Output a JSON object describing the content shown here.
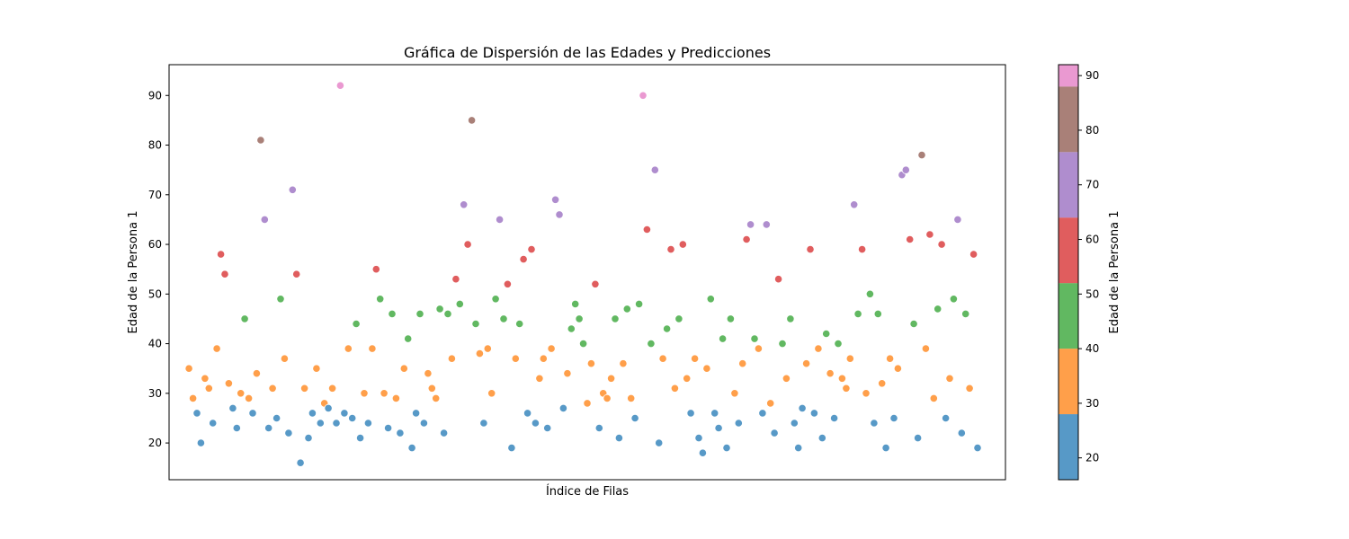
{
  "chart_data": {
    "type": "scatter",
    "title": "Gráfica de Dispersión de las Edades y Predicciones",
    "xlabel": "Índice de Filas",
    "ylabel": "Edad de la Persona 1",
    "xlim": [
      -5,
      205
    ],
    "ylim": [
      12.6,
      96.2
    ],
    "x_ticks_visible": false,
    "yticks": [
      20,
      30,
      40,
      50,
      60,
      70,
      80,
      90
    ],
    "grid": false,
    "marker": "circle",
    "marker_alpha": 0.75,
    "marker_edgecolor": "#ffffff",
    "colorbar": {
      "label": "Edad de la Persona 1",
      "range": [
        16,
        92
      ],
      "ticks": [
        20,
        30,
        40,
        50,
        60,
        70,
        80,
        90
      ],
      "bands": [
        {
          "from": 16,
          "to": 28,
          "color": "#1f77b4"
        },
        {
          "from": 28,
          "to": 40,
          "color": "#ff7f0e"
        },
        {
          "from": 40,
          "to": 52,
          "color": "#2ca02c"
        },
        {
          "from": 52,
          "to": 64,
          "color": "#d62728"
        },
        {
          "from": 64,
          "to": 76,
          "color": "#9467bd"
        },
        {
          "from": 76,
          "to": 88,
          "color": "#8c564b"
        },
        {
          "from": 88,
          "to": 92,
          "color": "#e377c2"
        }
      ]
    },
    "points": [
      [
        0,
        35
      ],
      [
        1,
        29
      ],
      [
        2,
        26
      ],
      [
        3,
        20
      ],
      [
        4,
        33
      ],
      [
        5,
        31
      ],
      [
        6,
        24
      ],
      [
        7,
        39
      ],
      [
        8,
        58
      ],
      [
        9,
        54
      ],
      [
        10,
        32
      ],
      [
        11,
        27
      ],
      [
        12,
        23
      ],
      [
        13,
        30
      ],
      [
        14,
        45
      ],
      [
        15,
        29
      ],
      [
        16,
        26
      ],
      [
        17,
        34
      ],
      [
        18,
        81
      ],
      [
        19,
        65
      ],
      [
        20,
        23
      ],
      [
        21,
        31
      ],
      [
        22,
        25
      ],
      [
        23,
        49
      ],
      [
        24,
        37
      ],
      [
        25,
        22
      ],
      [
        26,
        71
      ],
      [
        27,
        54
      ],
      [
        28,
        16
      ],
      [
        29,
        31
      ],
      [
        30,
        21
      ],
      [
        31,
        26
      ],
      [
        32,
        35
      ],
      [
        33,
        24
      ],
      [
        34,
        28
      ],
      [
        35,
        27
      ],
      [
        36,
        31
      ],
      [
        37,
        24
      ],
      [
        38,
        92
      ],
      [
        39,
        26
      ],
      [
        40,
        39
      ],
      [
        41,
        25
      ],
      [
        42,
        44
      ],
      [
        43,
        21
      ],
      [
        44,
        30
      ],
      [
        45,
        24
      ],
      [
        46,
        39
      ],
      [
        47,
        55
      ],
      [
        48,
        49
      ],
      [
        49,
        30
      ],
      [
        50,
        23
      ],
      [
        51,
        46
      ],
      [
        52,
        29
      ],
      [
        53,
        22
      ],
      [
        54,
        35
      ],
      [
        55,
        41
      ],
      [
        56,
        19
      ],
      [
        57,
        26
      ],
      [
        58,
        46
      ],
      [
        59,
        24
      ],
      [
        60,
        34
      ],
      [
        61,
        31
      ],
      [
        62,
        29
      ],
      [
        63,
        47
      ],
      [
        64,
        22
      ],
      [
        65,
        46
      ],
      [
        66,
        37
      ],
      [
        67,
        53
      ],
      [
        68,
        48
      ],
      [
        69,
        68
      ],
      [
        70,
        60
      ],
      [
        71,
        85
      ],
      [
        72,
        44
      ],
      [
        73,
        38
      ],
      [
        74,
        24
      ],
      [
        75,
        39
      ],
      [
        76,
        30
      ],
      [
        77,
        49
      ],
      [
        78,
        65
      ],
      [
        79,
        45
      ],
      [
        80,
        52
      ],
      [
        81,
        19
      ],
      [
        82,
        37
      ],
      [
        83,
        44
      ],
      [
        84,
        57
      ],
      [
        85,
        26
      ],
      [
        86,
        59
      ],
      [
        87,
        24
      ],
      [
        88,
        33
      ],
      [
        89,
        37
      ],
      [
        90,
        23
      ],
      [
        91,
        39
      ],
      [
        92,
        69
      ],
      [
        93,
        66
      ],
      [
        94,
        27
      ],
      [
        95,
        34
      ],
      [
        96,
        43
      ],
      [
        97,
        48
      ],
      [
        98,
        45
      ],
      [
        99,
        40
      ],
      [
        100,
        28
      ],
      [
        101,
        36
      ],
      [
        102,
        52
      ],
      [
        103,
        23
      ],
      [
        104,
        30
      ],
      [
        105,
        29
      ],
      [
        106,
        33
      ],
      [
        107,
        45
      ],
      [
        108,
        21
      ],
      [
        109,
        36
      ],
      [
        110,
        47
      ],
      [
        111,
        29
      ],
      [
        112,
        25
      ],
      [
        113,
        48
      ],
      [
        114,
        90
      ],
      [
        115,
        63
      ],
      [
        116,
        40
      ],
      [
        117,
        75
      ],
      [
        118,
        20
      ],
      [
        119,
        37
      ],
      [
        120,
        43
      ],
      [
        121,
        59
      ],
      [
        122,
        31
      ],
      [
        123,
        45
      ],
      [
        124,
        60
      ],
      [
        125,
        33
      ],
      [
        126,
        26
      ],
      [
        127,
        37
      ],
      [
        128,
        21
      ],
      [
        129,
        18
      ],
      [
        130,
        35
      ],
      [
        131,
        49
      ],
      [
        132,
        26
      ],
      [
        133,
        23
      ],
      [
        134,
        41
      ],
      [
        135,
        19
      ],
      [
        136,
        45
      ],
      [
        137,
        30
      ],
      [
        138,
        24
      ],
      [
        139,
        36
      ],
      [
        140,
        61
      ],
      [
        141,
        64
      ],
      [
        142,
        41
      ],
      [
        143,
        39
      ],
      [
        144,
        26
      ],
      [
        145,
        64
      ],
      [
        146,
        28
      ],
      [
        147,
        22
      ],
      [
        148,
        53
      ],
      [
        149,
        40
      ],
      [
        150,
        33
      ],
      [
        151,
        45
      ],
      [
        152,
        24
      ],
      [
        153,
        19
      ],
      [
        154,
        27
      ],
      [
        155,
        36
      ],
      [
        156,
        59
      ],
      [
        157,
        26
      ],
      [
        158,
        39
      ],
      [
        159,
        21
      ],
      [
        160,
        42
      ],
      [
        161,
        34
      ],
      [
        162,
        25
      ],
      [
        163,
        40
      ],
      [
        164,
        33
      ],
      [
        165,
        31
      ],
      [
        166,
        37
      ],
      [
        167,
        68
      ],
      [
        168,
        46
      ],
      [
        169,
        59
      ],
      [
        170,
        30
      ],
      [
        171,
        50
      ],
      [
        172,
        24
      ],
      [
        173,
        46
      ],
      [
        174,
        32
      ],
      [
        175,
        19
      ],
      [
        176,
        37
      ],
      [
        177,
        25
      ],
      [
        178,
        35
      ],
      [
        179,
        74
      ],
      [
        180,
        75
      ],
      [
        181,
        61
      ],
      [
        182,
        44
      ],
      [
        183,
        21
      ],
      [
        184,
        78
      ],
      [
        185,
        39
      ],
      [
        186,
        62
      ],
      [
        187,
        29
      ],
      [
        188,
        47
      ],
      [
        189,
        60
      ],
      [
        190,
        25
      ],
      [
        191,
        33
      ],
      [
        192,
        49
      ],
      [
        193,
        65
      ],
      [
        194,
        22
      ],
      [
        195,
        46
      ],
      [
        196,
        31
      ],
      [
        197,
        58
      ],
      [
        198,
        19
      ]
    ]
  }
}
